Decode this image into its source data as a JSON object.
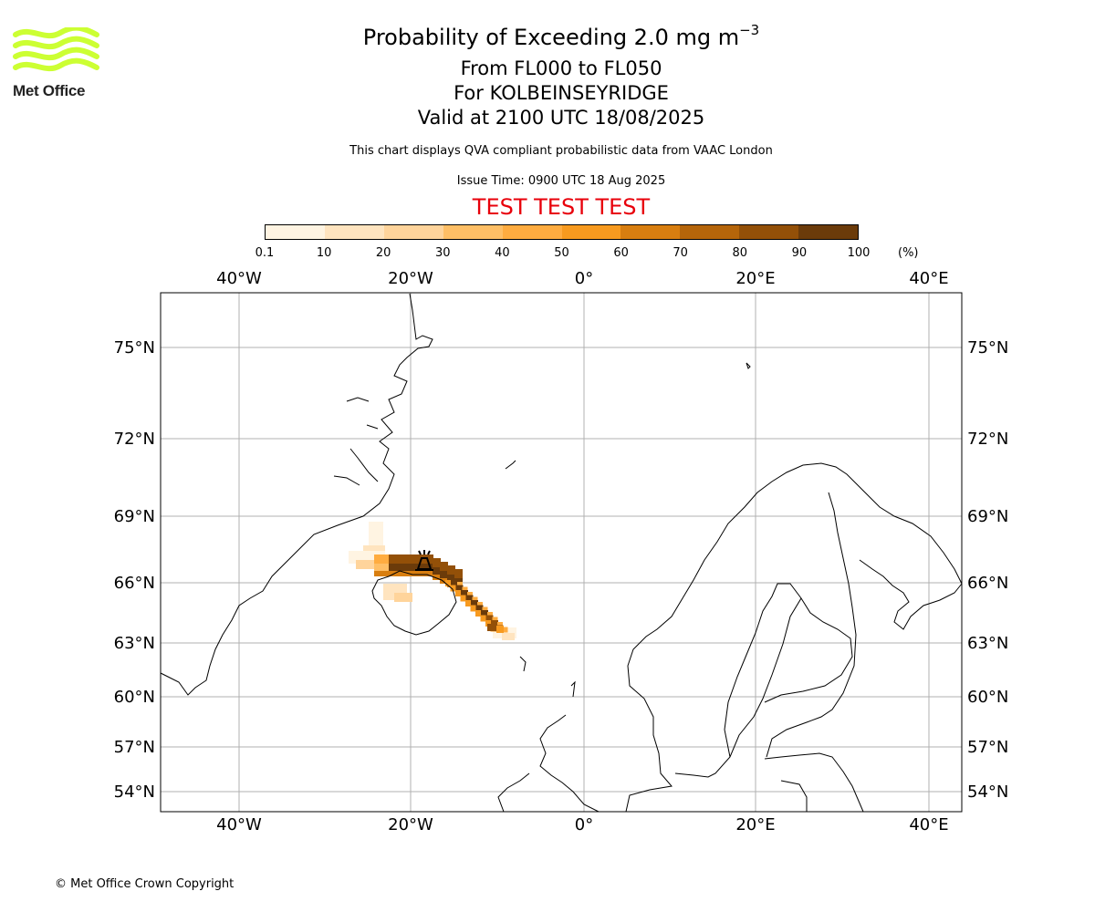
{
  "header": {
    "title_prefix": "Probability of Exceeding 2.0 mg m",
    "title_exponent": "−3",
    "lines": [
      "From FL000 to FL050",
      "For KOLBEINSEYRIDGE",
      "Valid at 2100 UTC 18/08/2025"
    ],
    "subtitle": "This chart displays QVA compliant probabilistic data from VAAC London",
    "issue_time": "Issue Time: 0900 UTC 18 Aug 2025",
    "test_banner": "TEST TEST TEST"
  },
  "logo": {
    "text": "Met Office",
    "color": "#ccff33"
  },
  "colorbar": {
    "labels": [
      "0.1",
      "10",
      "20",
      "30",
      "40",
      "50",
      "60",
      "70",
      "80",
      "90",
      "100"
    ],
    "unit": "(%)",
    "colors": [
      "#fff4e2",
      "#ffe4bf",
      "#ffd49b",
      "#ffbf66",
      "#ffac40",
      "#f79a1f",
      "#d87e10",
      "#b5650a",
      "#935008",
      "#6b3b0a"
    ]
  },
  "map": {
    "lon_range": [
      -49,
      44
    ],
    "lat_range": [
      53,
      77
    ],
    "top_lon_labels": [
      "40°W",
      "20°W",
      "0°",
      "20°E",
      "40°E"
    ],
    "bottom_lon_labels": [
      "40°W",
      "20°W",
      "0°",
      "20°E",
      "40°E"
    ],
    "lat_labels": [
      "75°N",
      "72°N",
      "69°N",
      "66°N",
      "63°N",
      "60°N",
      "57°N",
      "54°N"
    ],
    "gridline_color": "#b0b0b0",
    "source_symbol": "volcano-icon"
  },
  "footer": {
    "copyright": "© Met Office Crown Copyright"
  }
}
